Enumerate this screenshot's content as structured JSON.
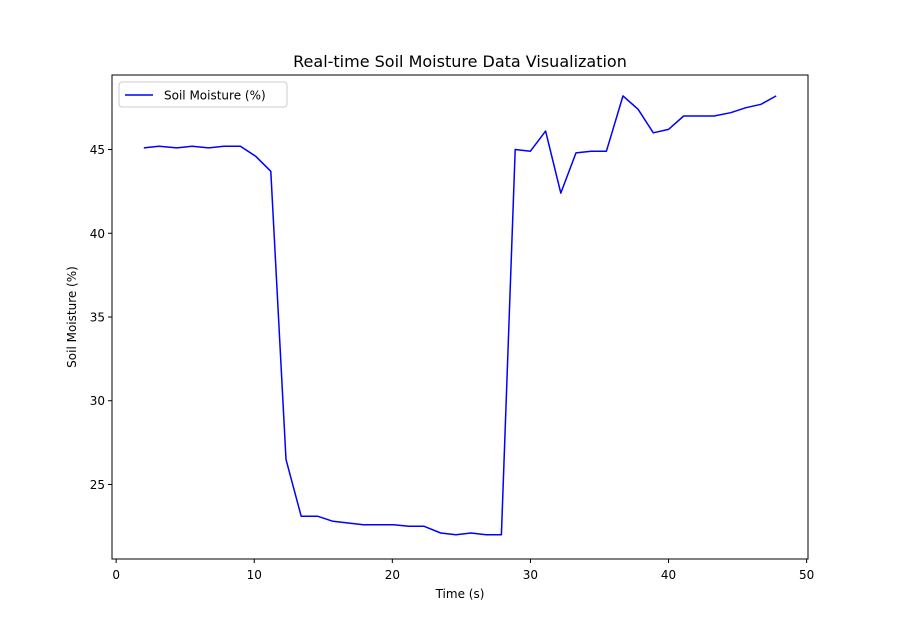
{
  "chart_data": {
    "type": "line",
    "title": "Real-time Soil Moisture Data Visualization",
    "xlabel": "Time (s)",
    "ylabel": "Soil Moisture (%)",
    "xlim": [
      -0.3,
      50.1
    ],
    "ylim": [
      20.55,
      49.45
    ],
    "xticks": [
      0,
      10,
      20,
      30,
      40,
      50
    ],
    "yticks": [
      25,
      30,
      35,
      40,
      45
    ],
    "grid": false,
    "legend_position": "upper-left",
    "series": [
      {
        "name": "Soil Moisture (%)",
        "color": "#0000ff",
        "x": [
          2.0,
          3.1,
          4.4,
          5.5,
          6.7,
          7.8,
          9.0,
          10.1,
          11.2,
          12.3,
          13.4,
          14.6,
          15.7,
          16.8,
          17.9,
          19.0,
          20.1,
          21.2,
          22.3,
          23.5,
          24.6,
          25.7,
          26.8,
          27.9,
          28.9,
          30.0,
          31.1,
          32.2,
          33.3,
          34.4,
          35.5,
          36.7,
          37.8,
          38.9,
          40.0,
          41.1,
          42.2,
          43.3,
          44.5,
          45.6,
          46.7,
          47.8
        ],
        "y": [
          45.1,
          45.2,
          45.1,
          45.2,
          45.1,
          45.2,
          45.2,
          44.6,
          43.7,
          26.5,
          23.1,
          23.1,
          22.8,
          22.7,
          22.6,
          22.6,
          22.6,
          22.5,
          22.5,
          22.1,
          22.0,
          22.1,
          22.0,
          22.0,
          45.0,
          44.9,
          46.1,
          42.4,
          44.8,
          44.9,
          44.9,
          48.2,
          47.4,
          46.0,
          46.2,
          47.0,
          47.0,
          47.0,
          47.2,
          47.5,
          47.7,
          48.2
        ]
      }
    ]
  }
}
